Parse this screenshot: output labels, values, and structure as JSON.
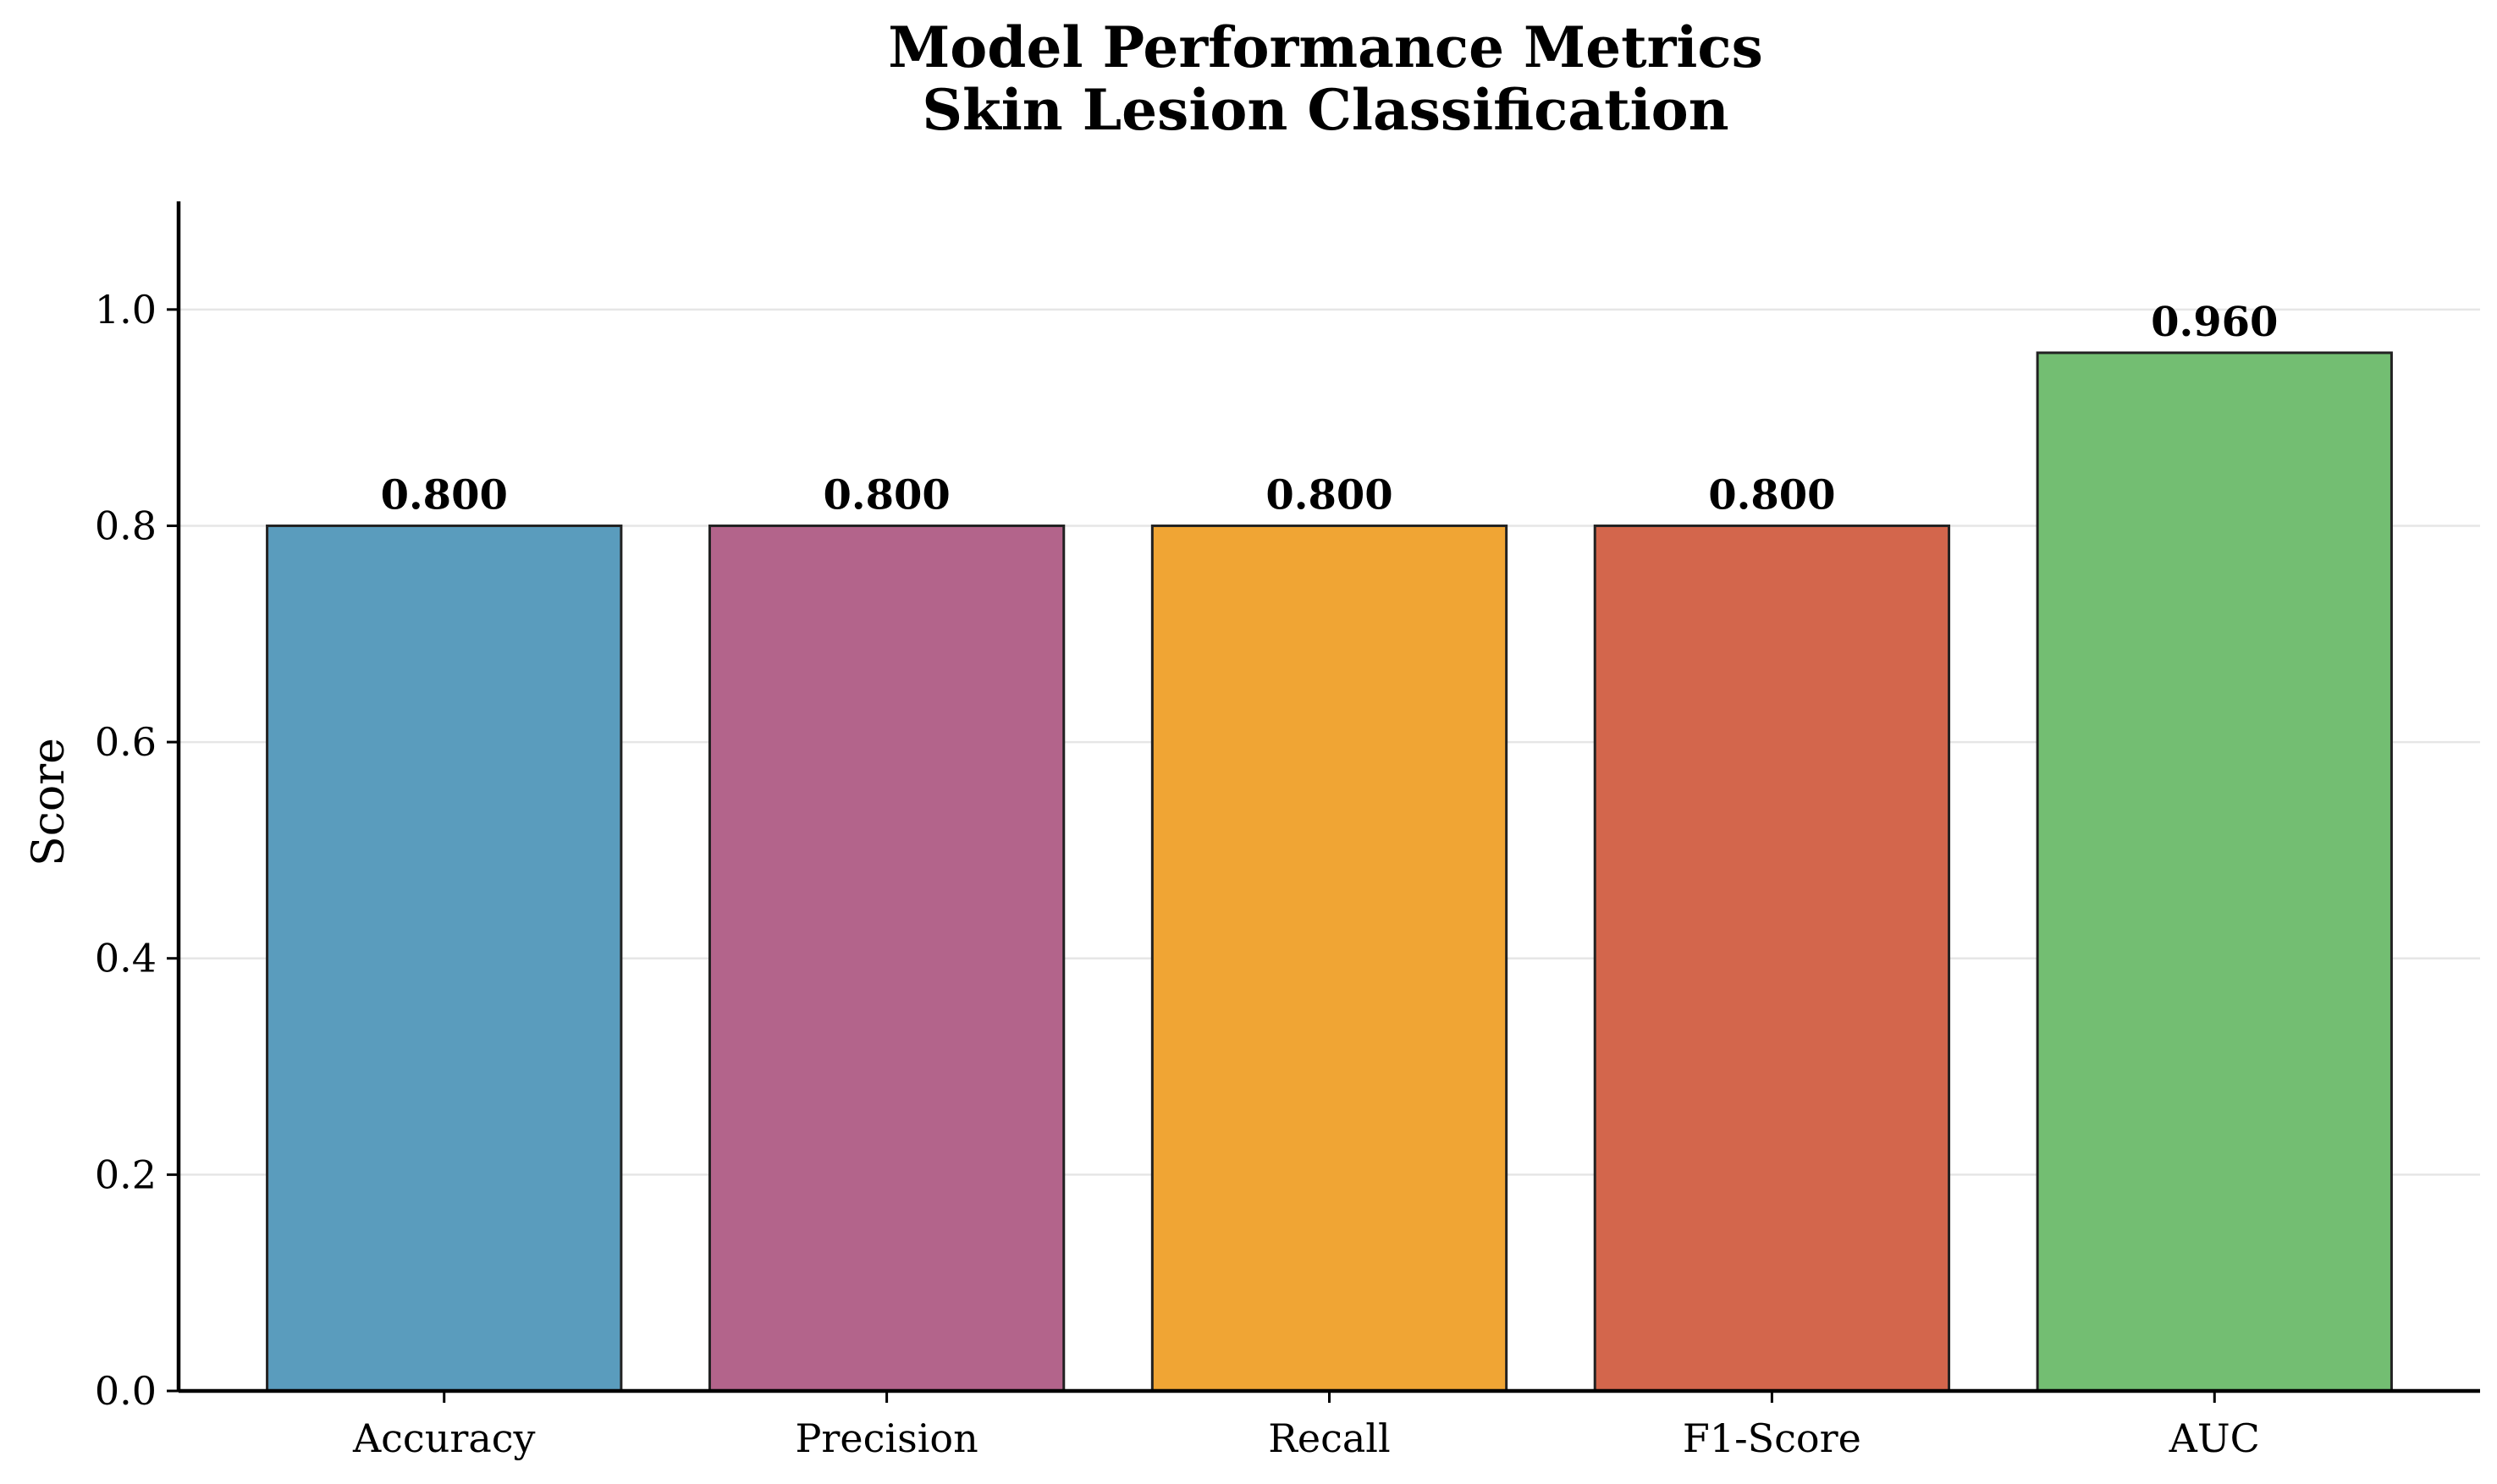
{
  "chart_data": {
    "type": "bar",
    "title": "Model Performance Metrics",
    "subtitle": "Skin Lesion Classification",
    "xlabel": "",
    "ylabel": "Score",
    "categories": [
      "Accuracy",
      "Precision",
      "Recall",
      "F1-Score",
      "AUC"
    ],
    "values": [
      0.8,
      0.8,
      0.8,
      0.8,
      0.96
    ],
    "value_labels": [
      "0.800",
      "0.800",
      "0.800",
      "0.800",
      "0.960"
    ],
    "colors": [
      "#5a9cbd",
      "#b3648b",
      "#f0a534",
      "#d3664c",
      "#73be72"
    ],
    "ylim": [
      0,
      1.1
    ],
    "yticks": [
      0.0,
      0.2,
      0.4,
      0.6,
      0.8,
      1.0
    ],
    "ytick_labels": [
      "0.0",
      "0.2",
      "0.4",
      "0.6",
      "0.8",
      "1.0"
    ],
    "grid": "horizontal",
    "legend": "none"
  }
}
